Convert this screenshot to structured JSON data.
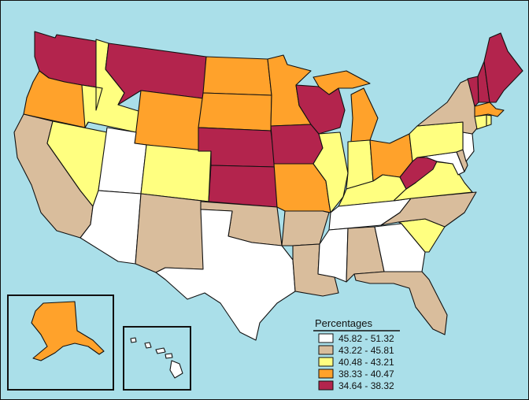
{
  "colors": {
    "ocean": "#aadfe9",
    "class_1": "#ffffff",
    "class_2": "#d9bd9c",
    "class_3": "#ffff80",
    "class_4": "#ffa22b",
    "class_5": "#b3244d"
  },
  "legend": {
    "title": "Percentages",
    "items": [
      {
        "label": "45.82 - 51.32",
        "color": "#ffffff"
      },
      {
        "label": "43.22 - 45.81",
        "color": "#d9bd9c"
      },
      {
        "label": "40.48 - 43.21",
        "color": "#ffff80"
      },
      {
        "label": "38.33 - 40.47",
        "color": "#ffa22b"
      },
      {
        "label": "34.64 - 38.32",
        "color": "#b3244d"
      }
    ]
  },
  "states": {
    "WA": "class_5",
    "OR": "class_4",
    "CA": "class_2",
    "NV": "class_3",
    "ID": "class_3",
    "MT": "class_5",
    "WY": "class_4",
    "UT": "class_1",
    "AZ": "class_1",
    "CO": "class_3",
    "NM": "class_2",
    "ND": "class_4",
    "SD": "class_4",
    "NE": "class_5",
    "KS": "class_5",
    "OK": "class_2",
    "TX": "class_1",
    "MN": "class_4",
    "IA": "class_5",
    "MO": "class_4",
    "AR": "class_2",
    "LA": "class_2",
    "WI": "class_5",
    "IL": "class_3",
    "MI": "class_4",
    "IN": "class_3",
    "OH": "class_4",
    "KY": "class_3",
    "TN": "class_1",
    "MS": "class_1",
    "AL": "class_2",
    "GA": "class_1",
    "FL": "class_2",
    "SC": "class_3",
    "NC": "class_2",
    "VA": "class_3",
    "WV": "class_5",
    "PA": "class_3",
    "NY": "class_2",
    "VT": "class_5",
    "NH": "class_5",
    "ME": "class_5",
    "MA": "class_4",
    "CT": "class_3",
    "RI": "class_3",
    "NJ": "class_1",
    "DE": "class_2",
    "MD": "class_1",
    "AK": "class_4",
    "HI": "class_1"
  }
}
